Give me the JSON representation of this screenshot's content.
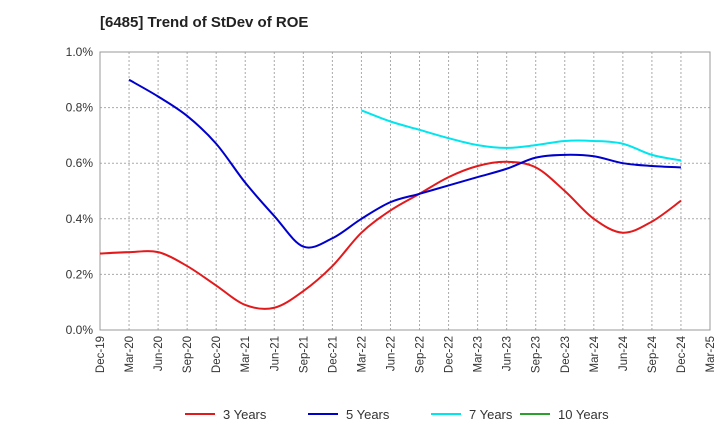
{
  "chart_data": {
    "type": "line",
    "title": "[6485]  Trend of StDev of ROE",
    "xlabel": "",
    "ylabel": "",
    "x": [
      "Dec-19",
      "Mar-20",
      "Jun-20",
      "Sep-20",
      "Dec-20",
      "Mar-21",
      "Jun-21",
      "Sep-21",
      "Dec-21",
      "Mar-22",
      "Jun-22",
      "Sep-22",
      "Dec-22",
      "Mar-23",
      "Jun-23",
      "Sep-23",
      "Dec-23",
      "Mar-24",
      "Jun-24",
      "Sep-24",
      "Dec-24",
      "Mar-25"
    ],
    "ylim": [
      0,
      1.0
    ],
    "yticks": [
      "0.0%",
      "0.2%",
      "0.4%",
      "0.6%",
      "0.8%",
      "1.0%"
    ],
    "grid": true,
    "legend_position": "bottom",
    "series": [
      {
        "name": "3 Years",
        "color": "#e31a1c",
        "values": [
          0.275,
          0.28,
          0.28,
          0.23,
          0.16,
          0.09,
          0.08,
          0.14,
          0.23,
          0.35,
          0.43,
          0.49,
          0.55,
          0.59,
          0.605,
          0.585,
          0.5,
          0.4,
          0.35,
          0.39,
          0.465,
          null
        ]
      },
      {
        "name": "5 Years",
        "color": "#0000cc",
        "values": [
          null,
          0.9,
          0.84,
          0.77,
          0.67,
          0.53,
          0.41,
          0.3,
          0.33,
          0.4,
          0.46,
          0.49,
          0.52,
          0.55,
          0.58,
          0.62,
          0.63,
          0.625,
          0.6,
          0.59,
          0.585,
          null
        ]
      },
      {
        "name": "7 Years",
        "color": "#00e5ee",
        "values": [
          null,
          null,
          null,
          null,
          null,
          null,
          null,
          null,
          null,
          0.79,
          0.75,
          0.72,
          0.69,
          0.665,
          0.655,
          0.665,
          0.68,
          0.68,
          0.67,
          0.63,
          0.61,
          null
        ]
      },
      {
        "name": "10 Years",
        "color": "#2ca02c",
        "values": [
          null,
          null,
          null,
          null,
          null,
          null,
          null,
          null,
          null,
          null,
          null,
          null,
          null,
          null,
          null,
          null,
          null,
          null,
          null,
          null,
          null,
          null
        ]
      }
    ]
  }
}
